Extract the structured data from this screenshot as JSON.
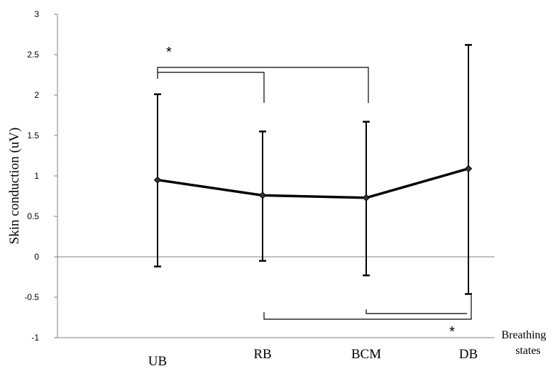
{
  "chart_data": {
    "type": "line",
    "title": "",
    "ylabel": "Skin conduction (uV)",
    "xlabel_lines": [
      "Breathing",
      "states"
    ],
    "categories": [
      "UB",
      "RB",
      "BCM",
      "DB"
    ],
    "ylim": [
      -1,
      3
    ],
    "yticks": [
      "-1",
      "-0.5",
      "0",
      "0.5",
      "1",
      "1.5",
      "2",
      "2.5",
      "3"
    ],
    "grid": false,
    "series": [
      {
        "values": [
          0.95,
          0.76,
          0.73,
          1.09
        ],
        "err_low": [
          -0.12,
          -0.05,
          -0.23,
          -0.46
        ],
        "err_high": [
          2.01,
          1.55,
          1.67,
          2.62
        ]
      }
    ],
    "significance": [
      {
        "label": "*",
        "from": "UB",
        "to": [
          "RB",
          "BCM"
        ],
        "position": "top"
      },
      {
        "label": "*",
        "from": "DB",
        "to": [
          "RB",
          "BCM"
        ],
        "position": "bottom"
      }
    ]
  }
}
